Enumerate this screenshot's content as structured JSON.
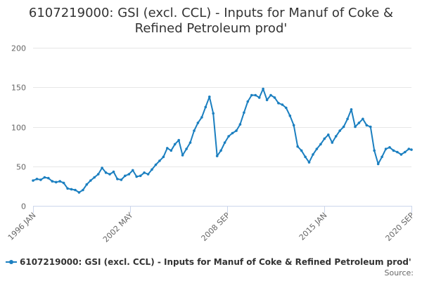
{
  "title": {
    "line1": "6107219000: GSI (excl. CCL) - Inputs for Manuf of Coke &",
    "line2": "Refined Petroleum prod'"
  },
  "credits": "Source:",
  "colors": {
    "series": "#1b7fc0",
    "grid": "#e6e6e6",
    "axis": "#ccd6eb",
    "background": "#ffffff"
  },
  "chart_data": {
    "type": "line",
    "title": "6107219000: GSI (excl. CCL) - Inputs for Manuf of Coke & Refined Petroleum prod'",
    "xlabel": "",
    "ylabel": "",
    "xlim": [
      1996.0,
      2020.67
    ],
    "ylim": [
      0,
      200
    ],
    "yticks": [
      0,
      50,
      100,
      150,
      200
    ],
    "xticks": [
      {
        "label": "1996 JAN",
        "x": 1996.0
      },
      {
        "label": "2002 MAY",
        "x": 2002.33
      },
      {
        "label": "2008 SEP",
        "x": 2008.67
      },
      {
        "label": "2015 JAN",
        "x": 2015.0
      },
      {
        "label": "2020 SEP",
        "x": 2020.67
      }
    ],
    "grid": true,
    "legend": "bottom-left",
    "series": [
      {
        "name": "6107219000: GSI (excl. CCL) - Inputs for Manuf of Coke & Refined Petroleum prod'",
        "x": [
          1996.0,
          1996.25,
          1996.5,
          1996.75,
          1997.0,
          1997.25,
          1997.5,
          1997.75,
          1998.0,
          1998.25,
          1998.5,
          1998.75,
          1999.0,
          1999.25,
          1999.5,
          1999.75,
          2000.0,
          2000.25,
          2000.5,
          2000.75,
          2001.0,
          2001.25,
          2001.5,
          2001.75,
          2002.0,
          2002.25,
          2002.5,
          2002.75,
          2003.0,
          2003.25,
          2003.5,
          2003.75,
          2004.0,
          2004.25,
          2004.5,
          2004.75,
          2005.0,
          2005.25,
          2005.5,
          2005.75,
          2006.0,
          2006.25,
          2006.5,
          2006.75,
          2007.0,
          2007.25,
          2007.5,
          2007.75,
          2008.0,
          2008.25,
          2008.5,
          2008.75,
          2009.0,
          2009.25,
          2009.5,
          2009.75,
          2010.0,
          2010.25,
          2010.5,
          2010.75,
          2011.0,
          2011.25,
          2011.5,
          2011.75,
          2012.0,
          2012.25,
          2012.5,
          2012.75,
          2013.0,
          2013.25,
          2013.5,
          2013.75,
          2014.0,
          2014.25,
          2014.5,
          2014.75,
          2015.0,
          2015.25,
          2015.5,
          2015.75,
          2016.0,
          2016.25,
          2016.5,
          2016.75,
          2017.0,
          2017.25,
          2017.5,
          2017.75,
          2018.0,
          2018.25,
          2018.5,
          2018.75,
          2019.0,
          2019.25,
          2019.5,
          2019.75,
          2020.0,
          2020.25,
          2020.5,
          2020.67
        ],
        "values": [
          32,
          34,
          33,
          36,
          35,
          31,
          30,
          31,
          29,
          22,
          21,
          20,
          17,
          20,
          27,
          32,
          36,
          40,
          48,
          42,
          40,
          43,
          34,
          33,
          38,
          40,
          45,
          37,
          38,
          42,
          40,
          46,
          52,
          57,
          62,
          73,
          70,
          78,
          83,
          64,
          72,
          80,
          95,
          105,
          112,
          125,
          138,
          117,
          63,
          70,
          80,
          88,
          92,
          95,
          103,
          118,
          132,
          140,
          140,
          137,
          148,
          134,
          140,
          137,
          130,
          128,
          124,
          114,
          102,
          75,
          70,
          62,
          55,
          65,
          72,
          78,
          85,
          90,
          80,
          88,
          95,
          100,
          110,
          122,
          100,
          105,
          110,
          102,
          100,
          70,
          53,
          62,
          72,
          74,
          70,
          68,
          65,
          68,
          72,
          71
        ]
      }
    ]
  }
}
